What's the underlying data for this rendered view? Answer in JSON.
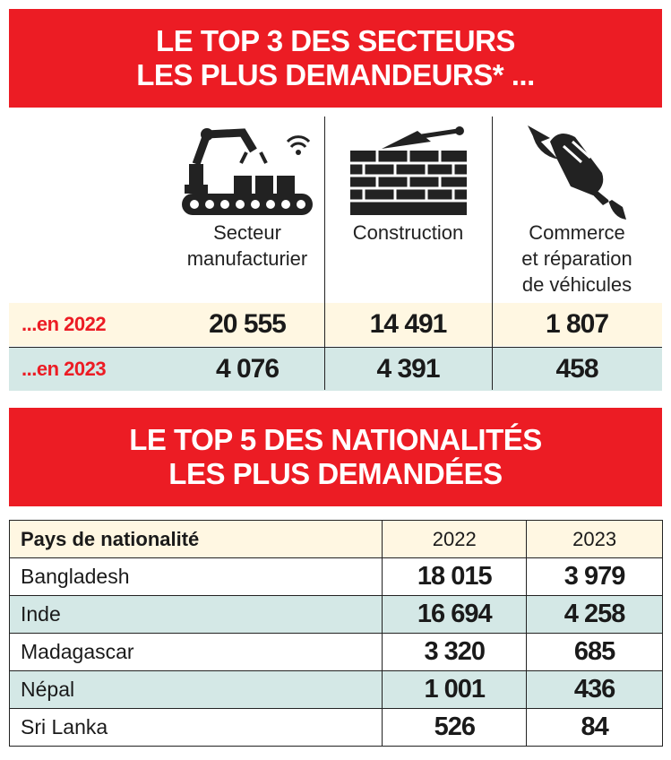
{
  "top_sectors": {
    "title_line1": "LE TOP 3 DES SECTEURS",
    "title_line2": "LES PLUS DEMANDEURS* ...",
    "sectors": [
      {
        "label_line1": "Secteur",
        "label_line2": "manufacturier",
        "label_line3": "",
        "icon": "factory-robot-icon",
        "v2022": "20 555",
        "v2023": "4 076"
      },
      {
        "label_line1": "Construction",
        "label_line2": "",
        "label_line3": "",
        "icon": "brick-wall-icon",
        "v2022": "14 491",
        "v2023": "4 391"
      },
      {
        "label_line1": "Commerce",
        "label_line2": "et réparation",
        "label_line3": "de véhicules",
        "icon": "wrench-fist-icon",
        "v2022": "1 807",
        "v2023": "458"
      }
    ],
    "row_2022_label": "...en 2022",
    "row_2023_label": "...en 2023"
  },
  "top_nationalities": {
    "title_line1": "LE TOP 5 DES NATIONALITÉS",
    "title_line2": "LES PLUS DEMANDÉES",
    "headers": [
      "Pays de nationalité",
      "2022",
      "2023"
    ],
    "rows": [
      [
        "Bangladesh",
        "18 015",
        "3 979"
      ],
      [
        "Inde",
        "16 694",
        "4 258"
      ],
      [
        "Madagascar",
        "3 320",
        "685"
      ],
      [
        "Népal",
        "1 001",
        "436"
      ],
      [
        "Sri Lanka",
        "526",
        "84"
      ]
    ]
  },
  "colors": {
    "red": "#ec1c24",
    "cream": "#fff7e2",
    "teal": "#d4e8e6"
  }
}
